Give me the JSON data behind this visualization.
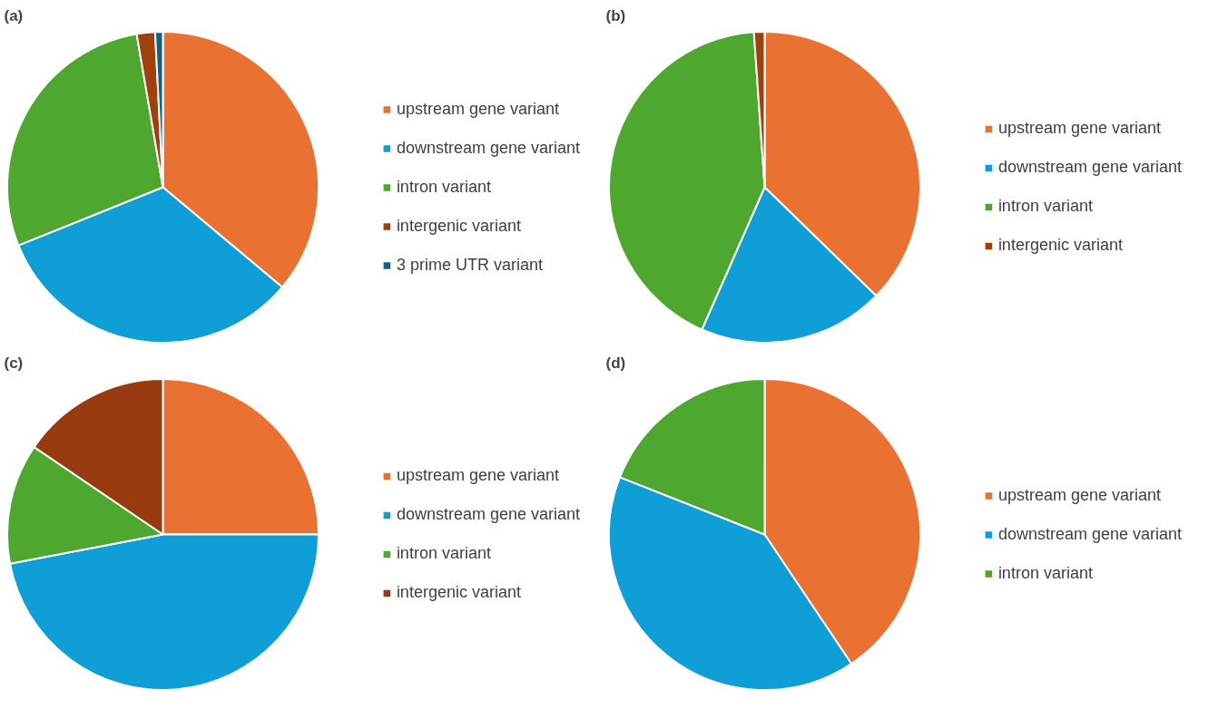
{
  "chart_data": [
    {
      "type": "pie",
      "title": "(a)",
      "categories": [
        "upstream gene variant",
        "downstream gene variant",
        "intron variant",
        "intergenic variant",
        "3 prime UTR variant"
      ],
      "values": [
        36.1,
        32.8,
        28.4,
        1.9,
        0.8
      ],
      "colors": [
        "#e97132",
        "#0f9ed5",
        "#4ea72e",
        "#a0410d",
        "#156082"
      ],
      "legend": "right"
    },
    {
      "type": "pie",
      "title": "(b)",
      "categories": [
        "upstream gene variant",
        "downstream gene variant",
        "intron variant",
        "intergenic variant"
      ],
      "values": [
        37.3,
        19.3,
        42.3,
        1.1
      ],
      "colors": [
        "#e97132",
        "#0f9ed5",
        "#4ea72e",
        "#a0410d"
      ],
      "legend": "right"
    },
    {
      "type": "pie",
      "title": "(c)",
      "categories": [
        "upstream gene variant",
        "downstream gene variant",
        "intron variant",
        "intergenic variant"
      ],
      "values": [
        25,
        47,
        12.5,
        15.5
      ],
      "colors": [
        "#e97132",
        "#0f9ed5",
        "#4ea72e",
        "#983a10"
      ],
      "legend": "right"
    },
    {
      "type": "pie",
      "title": "(d)",
      "categories": [
        "upstream gene variant",
        "downstream gene variant",
        "intron variant"
      ],
      "values": [
        40.6,
        40.4,
        19.0
      ],
      "colors": [
        "#e97132",
        "#0f9ed5",
        "#4ea72e"
      ],
      "legend": "right"
    }
  ]
}
